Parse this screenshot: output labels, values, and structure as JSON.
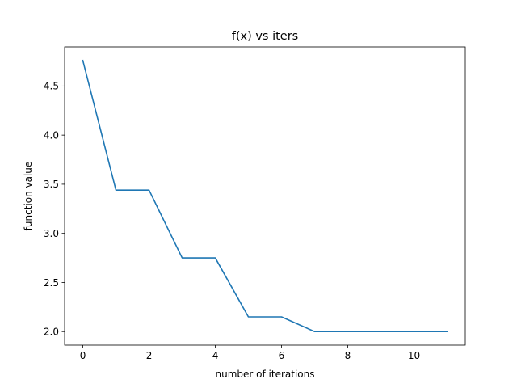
{
  "chart_data": {
    "type": "line",
    "title": "f(x) vs iters",
    "xlabel": "number of iterations",
    "ylabel": "function value",
    "xlim": [
      -0.55,
      11.55
    ],
    "ylim": [
      1.862,
      4.898
    ],
    "xticks": [
      0,
      2,
      4,
      6,
      8,
      10
    ],
    "xtick_labels": [
      "0",
      "2",
      "4",
      "6",
      "8",
      "10"
    ],
    "yticks": [
      2.0,
      2.5,
      3.0,
      3.5,
      4.0,
      4.5
    ],
    "ytick_labels": [
      "2.0",
      "2.5",
      "3.0",
      "3.5",
      "4.0",
      "4.5"
    ],
    "grid": false,
    "legend": "none",
    "series": [
      {
        "color": "#1f77b4",
        "x": [
          0,
          1,
          2,
          3,
          4,
          5,
          6,
          7,
          8,
          9,
          10,
          11
        ],
        "y": [
          4.76,
          3.44,
          3.44,
          2.75,
          2.75,
          2.15,
          2.15,
          2.0,
          2.0,
          2.0,
          2.0,
          2.0
        ]
      }
    ]
  }
}
